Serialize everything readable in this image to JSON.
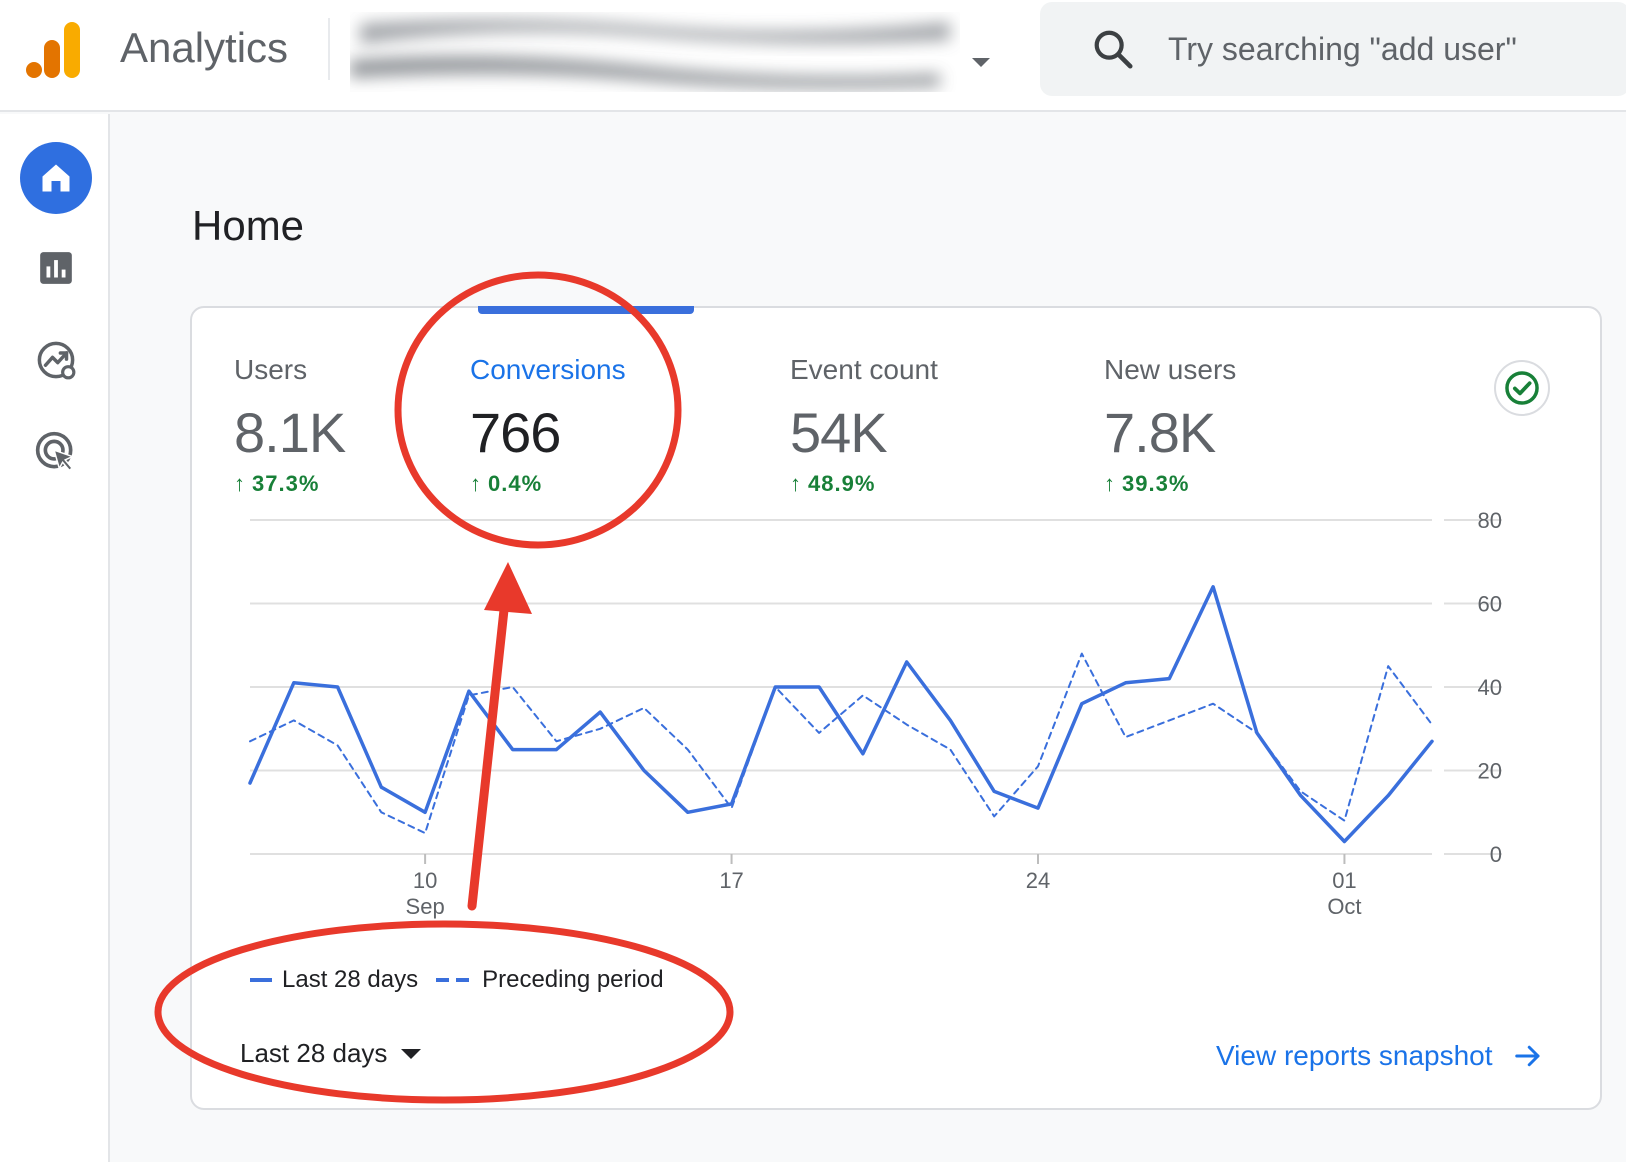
{
  "app": {
    "title": "Analytics",
    "brand_colors": [
      "#f9ab00",
      "#e37400"
    ]
  },
  "search": {
    "placeholder": "Try searching \"add user\""
  },
  "nav": {
    "items": [
      {
        "icon": "home-icon",
        "active": true
      },
      {
        "icon": "reports-icon",
        "active": false
      },
      {
        "icon": "explore-icon",
        "active": false
      },
      {
        "icon": "advertising-icon",
        "active": false
      }
    ]
  },
  "page": {
    "title": "Home"
  },
  "metrics": [
    {
      "label": "Users",
      "value": "8.1K",
      "change": "37.3%",
      "selected": false
    },
    {
      "label": "Conversions",
      "value": "766",
      "change": "0.4%",
      "selected": true
    },
    {
      "label": "Event count",
      "value": "54K",
      "change": "48.9%",
      "selected": false
    },
    {
      "label": "New users",
      "value": "7.8K",
      "change": "39.3%",
      "selected": false
    }
  ],
  "chart_data": {
    "type": "line",
    "x": [
      "2023-09-06",
      "2023-09-07",
      "2023-09-08",
      "2023-09-09",
      "2023-09-10",
      "2023-09-11",
      "2023-09-12",
      "2023-09-13",
      "2023-09-14",
      "2023-09-15",
      "2023-09-16",
      "2023-09-17",
      "2023-09-18",
      "2023-09-19",
      "2023-09-20",
      "2023-09-21",
      "2023-09-22",
      "2023-09-23",
      "2023-09-24",
      "2023-09-25",
      "2023-09-26",
      "2023-09-27",
      "2023-09-28",
      "2023-09-29",
      "2023-09-30",
      "2023-10-01",
      "2023-10-02",
      "2023-10-03"
    ],
    "xticks": [
      {
        "label": "10",
        "sub": "Sep",
        "index": 4
      },
      {
        "label": "17",
        "sub": "",
        "index": 11
      },
      {
        "label": "24",
        "sub": "",
        "index": 18
      },
      {
        "label": "01",
        "sub": "Oct",
        "index": 25
      }
    ],
    "yticks": [
      0,
      20,
      40,
      60,
      80
    ],
    "ylim": [
      0,
      80
    ],
    "grid": true,
    "legend_position": "bottom-left",
    "series": [
      {
        "name": "Last 28 days",
        "style": "solid",
        "color": "#3a6fdc",
        "values": [
          17,
          41,
          40,
          16,
          10,
          39,
          25,
          25,
          34,
          20,
          10,
          12,
          40,
          40,
          24,
          46,
          32,
          15,
          11,
          36,
          41,
          42,
          64,
          29,
          14,
          3,
          14,
          27
        ]
      },
      {
        "name": "Preceding period",
        "style": "dashed",
        "color": "#3a6fdc",
        "values": [
          27,
          32,
          26,
          10,
          5,
          38,
          40,
          27,
          30,
          35,
          25,
          11,
          40,
          29,
          38,
          31,
          25,
          9,
          21,
          48,
          28,
          32,
          36,
          29,
          15,
          8,
          45,
          31
        ]
      }
    ]
  },
  "range": {
    "label": "Last 28 days"
  },
  "snapshot": {
    "label": "View reports snapshot"
  }
}
